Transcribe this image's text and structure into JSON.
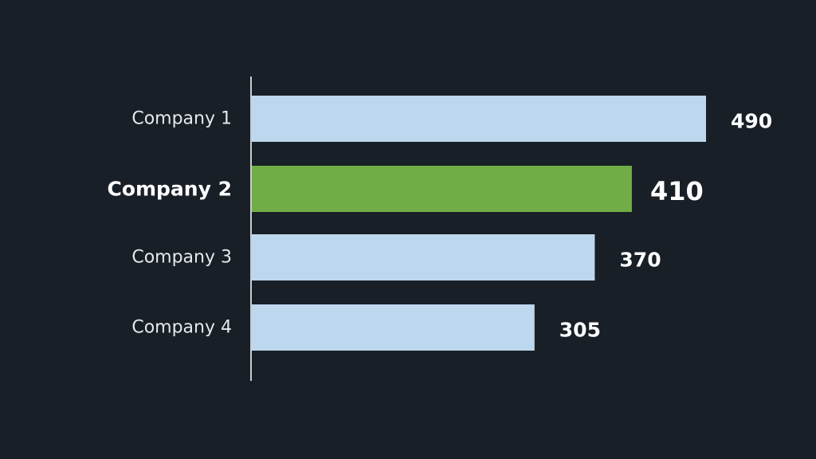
{
  "chart_data": {
    "type": "bar",
    "orientation": "horizontal",
    "categories": [
      "Company 1",
      "Company 2",
      "Company 3",
      "Company 4"
    ],
    "values": [
      490,
      410,
      370,
      305
    ],
    "highlight_index": 1,
    "xlim": [
      0,
      490
    ],
    "grid": false,
    "legend": "none",
    "title": "",
    "xlabel": "",
    "ylabel": ""
  },
  "colors": {
    "background": "#181f27",
    "bar": "#bdd7ee",
    "bar_highlight": "#70ad47",
    "axis": "#c8ccd0",
    "text": "#e6e9ec"
  }
}
